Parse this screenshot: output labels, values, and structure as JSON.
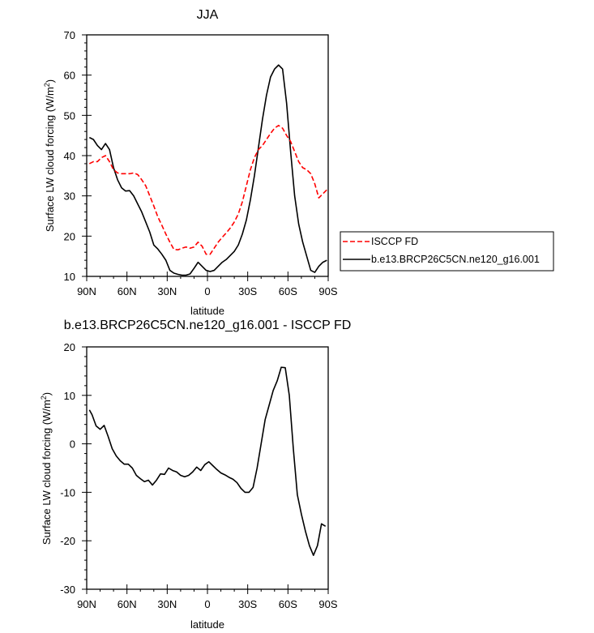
{
  "chart_data": [
    {
      "type": "line",
      "title": "JJA",
      "xlabel": "latitude",
      "ylabel": "Surface LW cloud forcing (W/m",
      "ylabel_sup": "2",
      "ylabel_close": ")",
      "ylim": [
        10,
        70
      ],
      "yticks": [
        10,
        20,
        30,
        40,
        50,
        60,
        70
      ],
      "xlim": [
        90,
        -90
      ],
      "xticks": [
        90,
        60,
        30,
        0,
        -30,
        -60,
        -90
      ],
      "xtick_labels": [
        "90N",
        "60N",
        "30N",
        "0",
        "30S",
        "60S",
        "90S"
      ],
      "legend": {
        "placement": "outside-right",
        "entries": [
          "ISCCP FD",
          "b.e13.BRCP26C5CN.ne120_g16.001"
        ]
      },
      "series": [
        {
          "name": "b.e13.BRCP26C5CN.ne120_g16.001",
          "color": "#000000",
          "dash": "solid",
          "x": [
            88,
            85,
            82,
            79,
            76,
            73,
            70,
            67,
            64,
            61,
            58,
            55,
            52,
            49,
            46,
            43,
            40,
            37,
            34,
            31,
            28,
            25,
            22,
            19,
            16,
            13,
            10,
            7,
            4,
            1,
            -2,
            -5,
            -8,
            -11,
            -14,
            -17,
            -20,
            -23,
            -26,
            -29,
            -32,
            -35,
            -38,
            -41,
            -44,
            -47,
            -50,
            -53,
            -56,
            -59,
            -62,
            -65,
            -68,
            -71,
            -74,
            -77,
            -80,
            -83,
            -86,
            -89
          ],
          "values": [
            44.5,
            44,
            42.5,
            41.5,
            43,
            41.5,
            37,
            34,
            32,
            31.2,
            31.3,
            30,
            28,
            26,
            23.5,
            21,
            17.8,
            16.8,
            15.5,
            14,
            11.5,
            10.8,
            10.5,
            10.3,
            10.3,
            10.6,
            12,
            13.5,
            12.5,
            11.5,
            11.2,
            11.5,
            12.5,
            13.5,
            14.2,
            15.2,
            16.2,
            17.8,
            20.5,
            24,
            29,
            35,
            42,
            49,
            55,
            59.5,
            61.5,
            62.5,
            61.5,
            53,
            41,
            30,
            23,
            18.5,
            15,
            11.5,
            11,
            12.5,
            13.5,
            14
          ]
        },
        {
          "name": "ISCCP FD",
          "color": "#ff0000",
          "dash": "dashed",
          "x": [
            88,
            85,
            82,
            79,
            76,
            73,
            70,
            67,
            64,
            61,
            58,
            55,
            52,
            49,
            46,
            43,
            40,
            37,
            34,
            31,
            28,
            25,
            22,
            19,
            16,
            13,
            10,
            7,
            4,
            1,
            -2,
            -5,
            -8,
            -11,
            -14,
            -17,
            -20,
            -23,
            -26,
            -29,
            -32,
            -35,
            -38,
            -41,
            -44,
            -47,
            -50,
            -53,
            -56,
            -59,
            -62,
            -65,
            -68,
            -71,
            -74,
            -77,
            -80,
            -83,
            -86,
            -89
          ],
          "values": [
            38,
            38.5,
            38.5,
            39.5,
            40,
            38.5,
            36.5,
            35.7,
            35.5,
            35.5,
            35.5,
            35.7,
            35.3,
            34,
            32.5,
            30,
            27.5,
            24.8,
            22.7,
            20.5,
            18.5,
            16.7,
            16.6,
            17,
            17.3,
            17,
            17.3,
            18.5,
            17.5,
            15.5,
            15.5,
            17,
            18.5,
            19.7,
            20.8,
            22,
            23.5,
            25.5,
            28.5,
            32.5,
            36.5,
            39.5,
            41.5,
            42.5,
            44,
            45.5,
            46.8,
            47.5,
            46.8,
            45,
            43.5,
            41,
            38.5,
            37,
            36.5,
            35.5,
            33,
            29.5,
            30.5,
            31.5
          ]
        }
      ]
    },
    {
      "type": "line",
      "title": "b.e13.BRCP26C5CN.ne120_g16.001 - ISCCP FD",
      "xlabel": "latitude",
      "ylabel": "Surface LW cloud forcing (W/m",
      "ylabel_sup": "2",
      "ylabel_close": ")",
      "ylim": [
        -30,
        20
      ],
      "yticks": [
        -30,
        -20,
        -10,
        0,
        10,
        20
      ],
      "xlim": [
        90,
        -90
      ],
      "xticks": [
        90,
        60,
        30,
        0,
        -30,
        -60,
        -90
      ],
      "xtick_labels": [
        "90N",
        "60N",
        "30N",
        "0",
        "30S",
        "60S",
        "90S"
      ],
      "series": [
        {
          "name": "b.e13.BRCP26C5CN.ne120_g16.001 - ISCCP FD",
          "color": "#000000",
          "dash": "solid",
          "x": [
            88,
            86,
            83,
            80,
            77,
            74,
            71,
            68,
            65,
            62,
            59,
            56,
            53,
            50,
            47,
            44,
            41,
            38,
            35,
            32,
            29,
            26,
            23,
            20,
            17,
            14,
            11,
            8,
            5,
            2,
            -1,
            -4,
            -7,
            -10,
            -13,
            -16,
            -19,
            -22,
            -25,
            -28,
            -31,
            -34,
            -37,
            -40,
            -43,
            -46,
            -49,
            -52,
            -55,
            -58,
            -61,
            -64,
            -67,
            -70,
            -73,
            -76,
            -79,
            -82,
            -85,
            -88
          ],
          "values": [
            7,
            6,
            3.7,
            3,
            3.8,
            1.5,
            -1,
            -2.5,
            -3.5,
            -4.2,
            -4.2,
            -5,
            -6.5,
            -7.2,
            -7.8,
            -7.5,
            -8.5,
            -7.5,
            -6.2,
            -6.3,
            -5,
            -5.5,
            -5.8,
            -6.5,
            -6.8,
            -6.5,
            -5.8,
            -4.8,
            -5.5,
            -4.3,
            -3.7,
            -4.5,
            -5.3,
            -6,
            -6.4,
            -6.9,
            -7.3,
            -8,
            -9.2,
            -10,
            -10,
            -9,
            -5,
            0,
            5,
            8,
            11,
            13,
            15.8,
            15.7,
            10,
            -1,
            -10.5,
            -14.5,
            -18,
            -21,
            -23,
            -21,
            -16.5,
            -17
          ]
        }
      ]
    }
  ]
}
